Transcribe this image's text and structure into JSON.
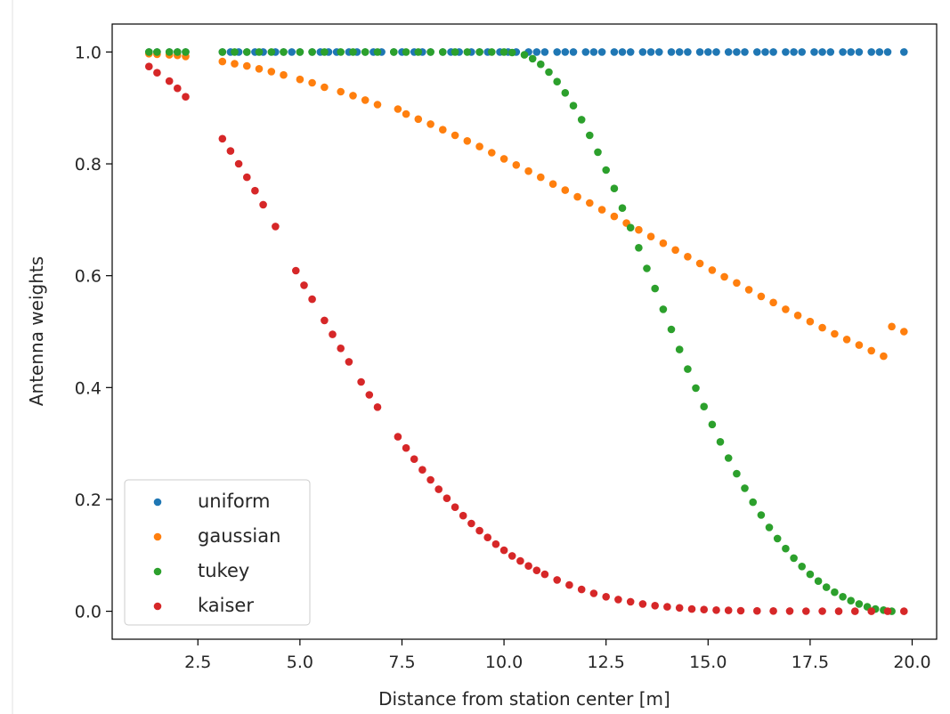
{
  "chart_data": {
    "type": "scatter",
    "title": "",
    "xlabel": "Distance from station center [m]",
    "ylabel": "Antenna weights",
    "xlim": [
      0.4,
      20.6
    ],
    "ylim": [
      -0.05,
      1.05
    ],
    "xticks": [
      2.5,
      5.0,
      7.5,
      10.0,
      12.5,
      15.0,
      17.5,
      20.0
    ],
    "xtick_labels": [
      "2.5",
      "5.0",
      "7.5",
      "10.0",
      "12.5",
      "15.0",
      "17.5",
      "20.0"
    ],
    "yticks": [
      0.0,
      0.2,
      0.4,
      0.6,
      0.8,
      1.0
    ],
    "ytick_labels": [
      "0.0",
      "0.2",
      "0.4",
      "0.6",
      "0.8",
      "1.0"
    ],
    "grid": false,
    "legend_position": "lower-left",
    "series": [
      {
        "name": "uniform",
        "color": "#1f77b4",
        "x": [
          1.3,
          1.5,
          1.8,
          2.0,
          2.2,
          3.1,
          3.3,
          3.5,
          3.7,
          3.9,
          4.1,
          4.4,
          4.6,
          4.8,
          5.0,
          5.3,
          5.5,
          5.7,
          5.9,
          6.2,
          6.4,
          6.6,
          6.8,
          7.0,
          7.3,
          7.5,
          7.8,
          8.0,
          8.2,
          8.5,
          8.7,
          8.9,
          9.2,
          9.4,
          9.6,
          9.9,
          10.1,
          10.3,
          10.6,
          10.8,
          11.0,
          11.3,
          11.5,
          11.7,
          12.0,
          12.2,
          12.4,
          12.7,
          12.9,
          13.1,
          13.4,
          13.6,
          13.8,
          14.1,
          14.3,
          14.5,
          14.8,
          15.0,
          15.2,
          15.5,
          15.7,
          15.9,
          16.2,
          16.4,
          16.6,
          16.9,
          17.1,
          17.3,
          17.6,
          17.8,
          18.0,
          18.3,
          18.5,
          18.7,
          19.0,
          19.2,
          19.4,
          19.8
        ],
        "y": [
          1,
          1,
          1,
          1,
          1,
          1,
          1,
          1,
          1,
          1,
          1,
          1,
          1,
          1,
          1,
          1,
          1,
          1,
          1,
          1,
          1,
          1,
          1,
          1,
          1,
          1,
          1,
          1,
          1,
          1,
          1,
          1,
          1,
          1,
          1,
          1,
          1,
          1,
          1,
          1,
          1,
          1,
          1,
          1,
          1,
          1,
          1,
          1,
          1,
          1,
          1,
          1,
          1,
          1,
          1,
          1,
          1,
          1,
          1,
          1,
          1,
          1,
          1,
          1,
          1,
          1,
          1,
          1,
          1,
          1,
          1,
          1,
          1,
          1,
          1,
          1,
          1,
          1
        ]
      },
      {
        "name": "gaussian",
        "color": "#ff7f0e",
        "x": [
          1.3,
          1.5,
          1.8,
          2.0,
          2.2,
          3.1,
          3.4,
          3.7,
          4.0,
          4.3,
          4.6,
          5.0,
          5.3,
          5.6,
          6.0,
          6.3,
          6.6,
          6.9,
          7.4,
          7.6,
          7.9,
          8.2,
          8.5,
          8.8,
          9.1,
          9.4,
          9.7,
          10.0,
          10.3,
          10.6,
          10.9,
          11.2,
          11.5,
          11.8,
          12.1,
          12.4,
          12.7,
          13.0,
          13.3,
          13.6,
          13.9,
          14.2,
          14.5,
          14.8,
          15.1,
          15.4,
          15.7,
          16.0,
          16.3,
          16.6,
          16.9,
          17.2,
          17.5,
          17.8,
          18.1,
          18.4,
          18.7,
          19.0,
          19.3,
          19.5,
          19.8
        ],
        "y": [
          0.997,
          0.996,
          0.995,
          0.994,
          0.992,
          0.983,
          0.979,
          0.975,
          0.97,
          0.965,
          0.959,
          0.951,
          0.945,
          0.937,
          0.929,
          0.922,
          0.914,
          0.906,
          0.898,
          0.889,
          0.88,
          0.871,
          0.861,
          0.851,
          0.841,
          0.831,
          0.82,
          0.809,
          0.798,
          0.787,
          0.776,
          0.764,
          0.753,
          0.741,
          0.73,
          0.718,
          0.706,
          0.694,
          0.682,
          0.67,
          0.658,
          0.646,
          0.634,
          0.622,
          0.61,
          0.598,
          0.587,
          0.575,
          0.563,
          0.552,
          0.54,
          0.529,
          0.518,
          0.507,
          0.496,
          0.486,
          0.476,
          0.466,
          0.456,
          0.509,
          0.5
        ]
      },
      {
        "name": "tukey",
        "color": "#2ca02c",
        "x": [
          1.3,
          1.5,
          1.8,
          2.0,
          2.2,
          3.1,
          3.4,
          3.7,
          4.0,
          4.3,
          4.6,
          5.0,
          5.3,
          5.6,
          6.0,
          6.3,
          6.6,
          6.9,
          7.3,
          7.6,
          7.9,
          8.2,
          8.5,
          8.8,
          9.1,
          9.4,
          9.7,
          10.0,
          10.2,
          10.5,
          10.7,
          10.9,
          11.1,
          11.3,
          11.5,
          11.7,
          11.9,
          12.1,
          12.3,
          12.5,
          12.7,
          12.9,
          13.1,
          13.3,
          13.5,
          13.7,
          13.9,
          14.1,
          14.3,
          14.5,
          14.7,
          14.9,
          15.1,
          15.3,
          15.5,
          15.7,
          15.9,
          16.1,
          16.3,
          16.5,
          16.7,
          16.9,
          17.1,
          17.3,
          17.5,
          17.7,
          17.9,
          18.1,
          18.3,
          18.5,
          18.7,
          18.9,
          19.1,
          19.3,
          19.5
        ],
        "y": [
          1,
          1,
          1,
          1,
          1,
          1,
          1,
          1,
          1,
          1,
          1,
          1,
          1,
          1,
          1,
          1,
          1,
          1,
          1,
          1,
          1,
          1,
          1,
          1,
          1,
          1,
          1,
          1,
          0.999,
          0.995,
          0.988,
          0.978,
          0.964,
          0.947,
          0.927,
          0.904,
          0.879,
          0.851,
          0.821,
          0.789,
          0.756,
          0.721,
          0.686,
          0.65,
          0.613,
          0.577,
          0.54,
          0.504,
          0.468,
          0.433,
          0.399,
          0.366,
          0.334,
          0.303,
          0.274,
          0.246,
          0.22,
          0.195,
          0.172,
          0.15,
          0.13,
          0.112,
          0.095,
          0.08,
          0.066,
          0.054,
          0.043,
          0.034,
          0.026,
          0.019,
          0.013,
          0.008,
          0.004,
          0.002,
          0.0
        ]
      },
      {
        "name": "kaiser",
        "color": "#d62728",
        "x": [
          1.3,
          1.5,
          1.8,
          2.0,
          2.2,
          3.1,
          3.3,
          3.5,
          3.7,
          3.9,
          4.1,
          4.4,
          4.9,
          5.1,
          5.3,
          5.6,
          5.8,
          6.0,
          6.2,
          6.5,
          6.7,
          6.9,
          7.4,
          7.6,
          7.8,
          8.0,
          8.2,
          8.4,
          8.6,
          8.8,
          9.0,
          9.2,
          9.4,
          9.6,
          9.8,
          10.0,
          10.2,
          10.4,
          10.6,
          10.8,
          11.0,
          11.3,
          11.6,
          11.9,
          12.2,
          12.5,
          12.8,
          13.1,
          13.4,
          13.7,
          14.0,
          14.3,
          14.6,
          14.9,
          15.2,
          15.5,
          15.8,
          16.2,
          16.6,
          17.0,
          17.4,
          17.8,
          18.2,
          18.6,
          19.0,
          19.4,
          19.8
        ],
        "y": [
          0.974,
          0.963,
          0.948,
          0.935,
          0.92,
          0.845,
          0.823,
          0.8,
          0.776,
          0.752,
          0.727,
          0.688,
          0.609,
          0.583,
          0.558,
          0.52,
          0.495,
          0.47,
          0.446,
          0.41,
          0.387,
          0.365,
          0.312,
          0.292,
          0.272,
          0.253,
          0.235,
          0.218,
          0.202,
          0.186,
          0.171,
          0.157,
          0.144,
          0.132,
          0.12,
          0.109,
          0.099,
          0.09,
          0.081,
          0.073,
          0.066,
          0.056,
          0.047,
          0.039,
          0.032,
          0.026,
          0.021,
          0.017,
          0.013,
          0.01,
          0.008,
          0.006,
          0.004,
          0.003,
          0.002,
          0.0015,
          0.001,
          0.0007,
          0.0004,
          0.0003,
          0.0002,
          0.0001,
          0.0,
          0.0,
          0.0,
          0.0,
          0.0
        ]
      }
    ]
  }
}
